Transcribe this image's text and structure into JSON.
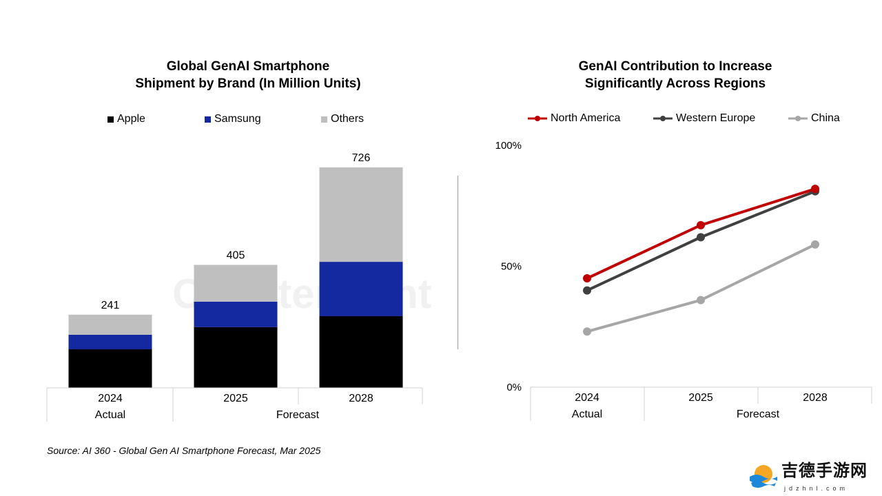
{
  "watermark": "Counterpoint",
  "source": "Source: AI 360 - Global Gen AI Smartphone Forecast, Mar 2025",
  "site_logo": {
    "text": "吉德手游网",
    "url_text": "jdzhnl.com"
  },
  "chart_data": [
    {
      "type": "bar",
      "stacked": true,
      "title_lines": [
        "Global GenAI Smartphone",
        "Shipment by Brand (In Million Units)"
      ],
      "categories": [
        "2024",
        "2025",
        "2028"
      ],
      "groups": [
        {
          "label": "Actual",
          "categories": [
            "2024"
          ]
        },
        {
          "label": "Forecast",
          "categories": [
            "2025",
            "2028"
          ]
        }
      ],
      "series": [
        {
          "name": "Apple",
          "color": "#000000",
          "values": [
            127,
            200,
            236
          ]
        },
        {
          "name": "Samsung",
          "color": "#1428A0",
          "values": [
            48,
            84,
            179
          ]
        },
        {
          "name": "Others",
          "color": "#BFBFBF",
          "values": [
            66,
            121,
            311
          ]
        }
      ],
      "totals": [
        "241",
        "405",
        "726"
      ],
      "ylim": [
        0,
        726
      ],
      "legend": "top",
      "grid": false
    },
    {
      "type": "line",
      "title_lines": [
        "GenAI Contribution to Increase",
        "Significantly Across Regions"
      ],
      "categories": [
        "2024",
        "2025",
        "2028"
      ],
      "groups": [
        {
          "label": "Actual",
          "categories": [
            "2024"
          ]
        },
        {
          "label": "Forecast",
          "categories": [
            "2025",
            "2028"
          ]
        }
      ],
      "series": [
        {
          "name": "North America",
          "color": "#C00000",
          "values": [
            45,
            67,
            82
          ]
        },
        {
          "name": "Western Europe",
          "color": "#404040",
          "values": [
            40,
            62,
            81
          ]
        },
        {
          "name": "China",
          "color": "#A6A6A6",
          "values": [
            23,
            36,
            59
          ]
        }
      ],
      "yticks": [
        "0%",
        "50%",
        "100%"
      ],
      "ylim": [
        0,
        100
      ],
      "legend": "top",
      "grid": false
    }
  ]
}
